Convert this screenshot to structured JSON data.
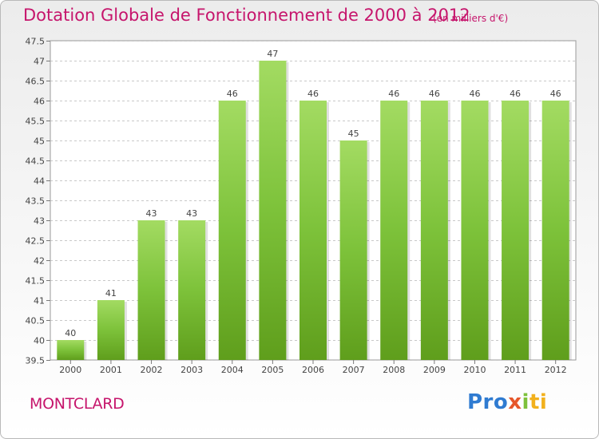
{
  "title": "Dotation Globale de Fonctionnement de 2000 à 2012",
  "unit": "(en milliers d'€)",
  "commune": "MONTCLARD",
  "brand": {
    "text": "Proxiti",
    "parts": [
      "Pro",
      "x",
      "i",
      "ti"
    ]
  },
  "colors": {
    "bar": "#7dc23a",
    "bar_light": "#a3db62",
    "bar_dark": "#5f9e1c",
    "title": "#c6156c",
    "grid": "#c8c8c8"
  },
  "chart_data": {
    "type": "bar",
    "categories": [
      "2000",
      "2001",
      "2002",
      "2003",
      "2004",
      "2005",
      "2006",
      "2007",
      "2008",
      "2009",
      "2010",
      "2011",
      "2012"
    ],
    "values": [
      40,
      41,
      43,
      43,
      46,
      47,
      46,
      45,
      46,
      46,
      46,
      46,
      46
    ],
    "data_labels": [
      "40",
      "41",
      "43",
      "43",
      "46",
      "47",
      "46",
      "45",
      "46",
      "46",
      "46",
      "46",
      "46"
    ],
    "ylim": [
      39.5,
      47.5
    ],
    "yticks": [
      "39.5",
      "40",
      "40.5",
      "41",
      "41.5",
      "42",
      "42.5",
      "43",
      "43.5",
      "44",
      "44.5",
      "45",
      "45.5",
      "46",
      "46.5",
      "47",
      "47.5"
    ],
    "grid": true
  }
}
